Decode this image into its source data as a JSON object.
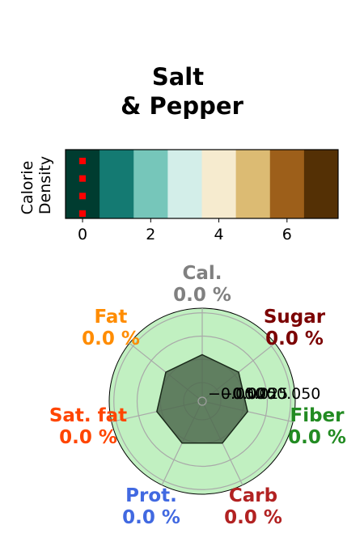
{
  "chart_data": [
    {
      "type": "heatmap",
      "title": "Salt\n& Pepper",
      "ylabel": "Calorie\nDensity",
      "x_ticks": [
        "0",
        "2",
        "4",
        "6"
      ],
      "x_tick_values": [
        0,
        2,
        4,
        6
      ],
      "xlim": [
        -0.5,
        7.5
      ],
      "cells": [
        0,
        1,
        2,
        3,
        4,
        5,
        6,
        7
      ],
      "colors": [
        "#003c30",
        "#147a72",
        "#76c6ba",
        "#d3eee9",
        "#f6ebcf",
        "#dcbb73",
        "#9d5f1a",
        "#543005"
      ],
      "markers": {
        "x": 0,
        "count": 4,
        "color": "#ff0000"
      }
    },
    {
      "type": "radar",
      "axes": [
        {
          "name": "Cal.",
          "value": "0.0 %",
          "color": "#808080"
        },
        {
          "name": "Sugar",
          "value": "0.0 %",
          "color": "#7b0000"
        },
        {
          "name": "Fiber",
          "value": "0.0 %",
          "color": "#228b22"
        },
        {
          "name": "Carb",
          "value": "0.0 %",
          "color": "#b22222"
        },
        {
          "name": "Prot.",
          "value": "0.0 %",
          "color": "#4169e1"
        },
        {
          "name": "Sat. fat",
          "value": "0.0 %",
          "color": "#ff4500"
        },
        {
          "name": "Fat",
          "value": "0.0 %",
          "color": "#ff8c00"
        }
      ],
      "values": [
        0,
        0,
        0,
        0,
        0,
        0,
        0
      ],
      "r_tick_labels": [
        "−0.050",
        "−0.025",
        "0.000",
        "0.025",
        "0.050"
      ],
      "background_color": "#c1f0c1",
      "polygon_color": "#4f6b4f"
    }
  ]
}
